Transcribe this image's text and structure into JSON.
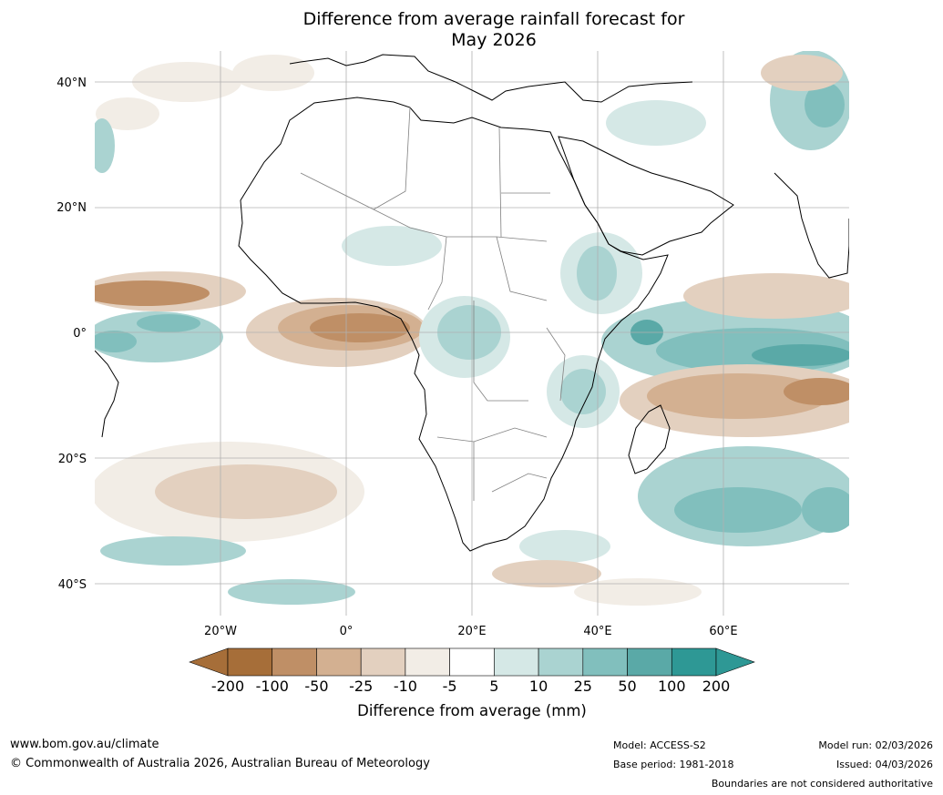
{
  "title": {
    "line1": "Difference from average rainfall forecast for",
    "line2": "May 2026"
  },
  "map": {
    "lat_labels": [
      "40°N",
      "20°N",
      "0°",
      "20°S",
      "40°S"
    ],
    "lon_labels": [
      "20°W",
      "0°",
      "20°E",
      "40°E",
      "60°E"
    ]
  },
  "colorbar": {
    "ticks": [
      "-200",
      "-100",
      "-50",
      "-25",
      "-10",
      "-5",
      "5",
      "10",
      "25",
      "50",
      "100",
      "200"
    ],
    "colors": [
      "#a66e39",
      "#bf8f66",
      "#d3b091",
      "#e3d0bf",
      "#f2ede6",
      "#ffffff",
      "#d5e8e6",
      "#aad3d1",
      "#81bfbd",
      "#5aa9a7",
      "#2e9895"
    ],
    "end_low": "#a66e39",
    "end_high": "#2e9895",
    "label": "Difference from average (mm)"
  },
  "footer": {
    "website": "www.bom.gov.au/climate",
    "copyright": "© Commonwealth of Australia 2026, Australian Bureau of Meteorology",
    "model": "Model: ACCESS-S2",
    "base_period": "Base period: 1981-2018",
    "model_run": "Model run: 02/03/2026",
    "issued": "Issued: 04/03/2026",
    "disclaimer": "Boundaries are not considered authoritative"
  }
}
